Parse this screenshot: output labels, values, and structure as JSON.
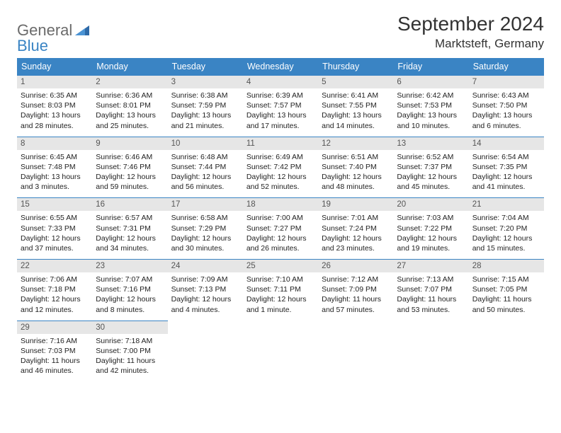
{
  "brand": {
    "part1": "General",
    "part2": "Blue"
  },
  "title": "September 2024",
  "location": "Marktsteft, Germany",
  "colors": {
    "header_bg": "#3a84c4",
    "daynum_bg": "#e6e6e6",
    "border": "#3a84c4",
    "text": "#222222",
    "logo_gray": "#6b6b6b",
    "logo_blue": "#3a84c4"
  },
  "dow": [
    "Sunday",
    "Monday",
    "Tuesday",
    "Wednesday",
    "Thursday",
    "Friday",
    "Saturday"
  ],
  "weeks": [
    [
      {
        "n": "1",
        "sr": "6:35 AM",
        "ss": "8:03 PM",
        "dl": "13 hours and 28 minutes."
      },
      {
        "n": "2",
        "sr": "6:36 AM",
        "ss": "8:01 PM",
        "dl": "13 hours and 25 minutes."
      },
      {
        "n": "3",
        "sr": "6:38 AM",
        "ss": "7:59 PM",
        "dl": "13 hours and 21 minutes."
      },
      {
        "n": "4",
        "sr": "6:39 AM",
        "ss": "7:57 PM",
        "dl": "13 hours and 17 minutes."
      },
      {
        "n": "5",
        "sr": "6:41 AM",
        "ss": "7:55 PM",
        "dl": "13 hours and 14 minutes."
      },
      {
        "n": "6",
        "sr": "6:42 AM",
        "ss": "7:53 PM",
        "dl": "13 hours and 10 minutes."
      },
      {
        "n": "7",
        "sr": "6:43 AM",
        "ss": "7:50 PM",
        "dl": "13 hours and 6 minutes."
      }
    ],
    [
      {
        "n": "8",
        "sr": "6:45 AM",
        "ss": "7:48 PM",
        "dl": "13 hours and 3 minutes."
      },
      {
        "n": "9",
        "sr": "6:46 AM",
        "ss": "7:46 PM",
        "dl": "12 hours and 59 minutes."
      },
      {
        "n": "10",
        "sr": "6:48 AM",
        "ss": "7:44 PM",
        "dl": "12 hours and 56 minutes."
      },
      {
        "n": "11",
        "sr": "6:49 AM",
        "ss": "7:42 PM",
        "dl": "12 hours and 52 minutes."
      },
      {
        "n": "12",
        "sr": "6:51 AM",
        "ss": "7:40 PM",
        "dl": "12 hours and 48 minutes."
      },
      {
        "n": "13",
        "sr": "6:52 AM",
        "ss": "7:37 PM",
        "dl": "12 hours and 45 minutes."
      },
      {
        "n": "14",
        "sr": "6:54 AM",
        "ss": "7:35 PM",
        "dl": "12 hours and 41 minutes."
      }
    ],
    [
      {
        "n": "15",
        "sr": "6:55 AM",
        "ss": "7:33 PM",
        "dl": "12 hours and 37 minutes."
      },
      {
        "n": "16",
        "sr": "6:57 AM",
        "ss": "7:31 PM",
        "dl": "12 hours and 34 minutes."
      },
      {
        "n": "17",
        "sr": "6:58 AM",
        "ss": "7:29 PM",
        "dl": "12 hours and 30 minutes."
      },
      {
        "n": "18",
        "sr": "7:00 AM",
        "ss": "7:27 PM",
        "dl": "12 hours and 26 minutes."
      },
      {
        "n": "19",
        "sr": "7:01 AM",
        "ss": "7:24 PM",
        "dl": "12 hours and 23 minutes."
      },
      {
        "n": "20",
        "sr": "7:03 AM",
        "ss": "7:22 PM",
        "dl": "12 hours and 19 minutes."
      },
      {
        "n": "21",
        "sr": "7:04 AM",
        "ss": "7:20 PM",
        "dl": "12 hours and 15 minutes."
      }
    ],
    [
      {
        "n": "22",
        "sr": "7:06 AM",
        "ss": "7:18 PM",
        "dl": "12 hours and 12 minutes."
      },
      {
        "n": "23",
        "sr": "7:07 AM",
        "ss": "7:16 PM",
        "dl": "12 hours and 8 minutes."
      },
      {
        "n": "24",
        "sr": "7:09 AM",
        "ss": "7:13 PM",
        "dl": "12 hours and 4 minutes."
      },
      {
        "n": "25",
        "sr": "7:10 AM",
        "ss": "7:11 PM",
        "dl": "12 hours and 1 minute."
      },
      {
        "n": "26",
        "sr": "7:12 AM",
        "ss": "7:09 PM",
        "dl": "11 hours and 57 minutes."
      },
      {
        "n": "27",
        "sr": "7:13 AM",
        "ss": "7:07 PM",
        "dl": "11 hours and 53 minutes."
      },
      {
        "n": "28",
        "sr": "7:15 AM",
        "ss": "7:05 PM",
        "dl": "11 hours and 50 minutes."
      }
    ],
    [
      {
        "n": "29",
        "sr": "7:16 AM",
        "ss": "7:03 PM",
        "dl": "11 hours and 46 minutes."
      },
      {
        "n": "30",
        "sr": "7:18 AM",
        "ss": "7:00 PM",
        "dl": "11 hours and 42 minutes."
      },
      null,
      null,
      null,
      null,
      null
    ]
  ],
  "labels": {
    "sunrise": "Sunrise:",
    "sunset": "Sunset:",
    "daylight": "Daylight:"
  }
}
